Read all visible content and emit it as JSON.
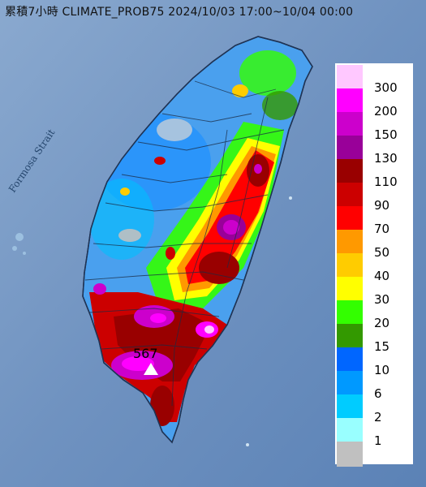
{
  "title": "累積7小時 CLIMATE_PROB75 2024/10/03 17:00~10/04 00:00",
  "sea_label": "Formosa Strait",
  "max_value_label": "567",
  "legend": [
    {
      "label": "300",
      "color": "#ffc8ff"
    },
    {
      "label": "200",
      "color": "#ff00ff"
    },
    {
      "label": "150",
      "color": "#cc00cc"
    },
    {
      "label": "130",
      "color": "#990099"
    },
    {
      "label": "110",
      "color": "#990000"
    },
    {
      "label": "90",
      "color": "#cc0000"
    },
    {
      "label": "70",
      "color": "#ff0000"
    },
    {
      "label": "50",
      "color": "#ff9900"
    },
    {
      "label": "40",
      "color": "#ffcc00"
    },
    {
      "label": "30",
      "color": "#ffff00"
    },
    {
      "label": "20",
      "color": "#33ff00"
    },
    {
      "label": "15",
      "color": "#339900"
    },
    {
      "label": "10",
      "color": "#0066ff"
    },
    {
      "label": "6",
      "color": "#0099ff"
    },
    {
      "label": "2",
      "color": "#00ccff"
    },
    {
      "label": "1",
      "color": "#99ffff"
    },
    {
      "label": "",
      "color": "#c0c0c0"
    }
  ]
}
